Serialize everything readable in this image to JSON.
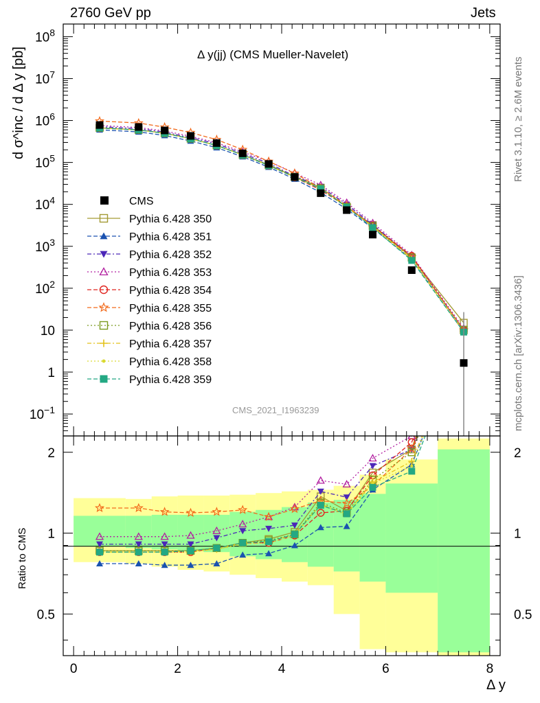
{
  "header": {
    "left": "2760 GeV pp",
    "right": "Jets"
  },
  "side_texts": {
    "rivet": "Rivet 3.1.10, ≥ 2.6M events",
    "mcplots": "mcplots.cern.ch [arXiv:1306.3436]"
  },
  "watermark": "CMS_2021_I1963239",
  "chart_data": {
    "type": "scatter",
    "title": "Δ y(jj) (CMS Mueller-Navelet)",
    "ylabel": "d σ^inc / d Δ y [pb]",
    "ratio_ylabel": "Ratio to CMS",
    "xlabel": "Δ y",
    "xlim": [
      -0.2,
      8.2
    ],
    "ylim": [
      0.03,
      200000000
    ],
    "ratio_ylim": [
      0.35,
      2.3
    ],
    "yscale": "log",
    "x_ticks": [
      "0",
      "2",
      "4",
      "6",
      "8"
    ],
    "y_ticks": [
      "10^8",
      "10^7",
      "10^6",
      "10^5",
      "10^4",
      "10^3",
      "10^2",
      "10",
      "1",
      "10^-1"
    ],
    "ratio_ticks": [
      "2",
      "1",
      "0.5"
    ],
    "legend_position": "left-middle",
    "x": [
      0.5,
      1.25,
      1.75,
      2.25,
      2.75,
      3.25,
      3.75,
      4.25,
      4.75,
      5.25,
      5.75,
      6.5,
      7.5
    ],
    "bin_edges": [
      0,
      1,
      1.5,
      2,
      2.5,
      3,
      3.5,
      4,
      4.5,
      5,
      5.5,
      6,
      7,
      8
    ],
    "band_outer": [
      [
        0.78,
        1.35
      ],
      [
        0.77,
        1.34
      ],
      [
        0.75,
        1.37
      ],
      [
        0.73,
        1.38
      ],
      [
        0.72,
        1.38
      ],
      [
        0.7,
        1.39
      ],
      [
        0.68,
        1.41
      ],
      [
        0.66,
        1.43
      ],
      [
        0.64,
        1.45
      ],
      [
        0.5,
        1.5
      ],
      [
        0.37,
        1.65
      ],
      [
        0.36,
        1.88
      ],
      [
        0.3,
        2.25
      ]
    ],
    "band_inner": [
      [
        0.89,
        1.16
      ],
      [
        0.88,
        1.16
      ],
      [
        0.87,
        1.17
      ],
      [
        0.86,
        1.17
      ],
      [
        0.85,
        1.17
      ],
      [
        0.82,
        1.2
      ],
      [
        0.8,
        1.22
      ],
      [
        0.78,
        1.25
      ],
      [
        0.75,
        1.3
      ],
      [
        0.72,
        1.33
      ],
      [
        0.66,
        1.4
      ],
      [
        0.6,
        1.53
      ],
      [
        0.36,
        2.05
      ]
    ],
    "reference": {
      "name": "CMS",
      "color": "#000000",
      "values": [
        780000,
        700000,
        580000,
        430000,
        290000,
        165000,
        92000,
        45000,
        18500,
        7300,
        1900,
        270,
        1.65
      ]
    },
    "series": [
      {
        "name": "Pythia 6.428 350",
        "color": "#a39a33",
        "marker": "square-open",
        "dash": "",
        "values": [
          670000,
          600000,
          498000,
          370000,
          255000,
          152000,
          88000,
          46000,
          25000,
          8800,
          3200,
          540,
          15
        ],
        "ratio": [
          0.86,
          0.86,
          0.86,
          0.86,
          0.88,
          0.92,
          0.95,
          1.01,
          1.37,
          1.21,
          1.68,
          2.05,
          null
        ]
      },
      {
        "name": "Pythia 6.428 351",
        "color": "#1a52b0",
        "marker": "triangle-up",
        "dash": "6,3",
        "values": [
          600000,
          535000,
          440000,
          325000,
          225000,
          137000,
          77000,
          40000,
          19200,
          7700,
          2700,
          490,
          9
        ],
        "ratio": [
          0.77,
          0.77,
          0.76,
          0.76,
          0.77,
          0.83,
          0.84,
          0.9,
          1.05,
          1.06,
          1.45,
          1.8,
          null
        ]
      },
      {
        "name": "Pythia 6.428 352",
        "color": "#4b26b8",
        "marker": "triangle-down",
        "dash": "6,3,2,3",
        "values": [
          710000,
          640000,
          530000,
          390000,
          280000,
          162000,
          96000,
          47000,
          26500,
          10000,
          3300,
          570,
          10
        ],
        "ratio": [
          0.91,
          0.91,
          0.91,
          0.91,
          0.96,
          1.02,
          1.04,
          1.07,
          1.43,
          1.36,
          1.78,
          2.05,
          null
        ]
      },
      {
        "name": "Pythia 6.428 353",
        "color": "#b21fa0",
        "marker": "triangle-up-open",
        "dash": "2,3",
        "values": [
          760000,
          680000,
          565000,
          420000,
          295000,
          178000,
          106000,
          56000,
          29000,
          11000,
          3600,
          620,
          11
        ],
        "ratio": [
          0.97,
          0.97,
          0.97,
          0.98,
          1.02,
          1.08,
          1.15,
          1.25,
          1.57,
          1.52,
          1.9,
          2.3,
          null
        ]
      },
      {
        "name": "Pythia 6.428 354",
        "color": "#e0241f",
        "marker": "circle-open",
        "dash": "6,3",
        "values": [
          660000,
          595000,
          495000,
          368000,
          254000,
          152000,
          85000,
          44000,
          22000,
          8800,
          3100,
          590,
          10
        ],
        "ratio": [
          0.85,
          0.85,
          0.85,
          0.85,
          0.88,
          0.92,
          0.92,
          0.98,
          1.19,
          1.21,
          1.64,
          2.18,
          null
        ]
      },
      {
        "name": "Pythia 6.428 355",
        "color": "#f26a1b",
        "marker": "star-open",
        "dash": "6,3",
        "values": [
          970000,
          870000,
          695000,
          515000,
          350000,
          202000,
          106000,
          55000,
          24500,
          9400,
          2850,
          560,
          10
        ],
        "ratio": [
          1.24,
          1.24,
          1.2,
          1.19,
          1.2,
          1.22,
          1.15,
          1.23,
          1.32,
          1.29,
          1.5,
          2.06,
          null
        ]
      },
      {
        "name": "Pythia 6.428 356",
        "color": "#7a9a1e",
        "marker": "square-open",
        "dash": "2,3",
        "values": [
          670000,
          600000,
          500000,
          370000,
          256000,
          152000,
          86000,
          45000,
          24000,
          8700,
          3000,
          540,
          10
        ],
        "ratio": [
          0.86,
          0.86,
          0.86,
          0.86,
          0.88,
          0.92,
          0.94,
          0.99,
          1.3,
          1.19,
          1.58,
          2.0,
          null
        ]
      },
      {
        "name": "Pythia 6.428 357",
        "color": "#e3c21a",
        "marker": "plus",
        "dash": "6,3,2,3",
        "values": [
          665000,
          595000,
          495000,
          368000,
          253000,
          151000,
          85000,
          44500,
          23800,
          8600,
          2950,
          500,
          9
        ],
        "ratio": [
          0.85,
          0.85,
          0.85,
          0.86,
          0.87,
          0.92,
          0.93,
          0.99,
          1.28,
          1.18,
          1.55,
          1.85,
          null
        ]
      },
      {
        "name": "Pythia 6.428 358",
        "color": "#d9d930",
        "marker": "dot",
        "dash": "2,3",
        "values": [
          660000,
          592000,
          492000,
          366000,
          252000,
          150000,
          84000,
          44000,
          23500,
          8500,
          2900,
          480,
          9
        ],
        "ratio": [
          0.85,
          0.85,
          0.85,
          0.85,
          0.87,
          0.91,
          0.92,
          0.98,
          1.27,
          1.17,
          1.53,
          1.78,
          null
        ]
      },
      {
        "name": "Pythia 6.428 359",
        "color": "#23a883",
        "marker": "square",
        "dash": "6,3",
        "values": [
          665000,
          596000,
          494000,
          367000,
          254000,
          151000,
          85000,
          44500,
          23500,
          8600,
          2800,
          460,
          9
        ],
        "ratio": [
          0.85,
          0.85,
          0.85,
          0.86,
          0.88,
          0.92,
          0.93,
          0.99,
          1.27,
          1.18,
          1.48,
          1.7,
          null
        ]
      }
    ]
  }
}
